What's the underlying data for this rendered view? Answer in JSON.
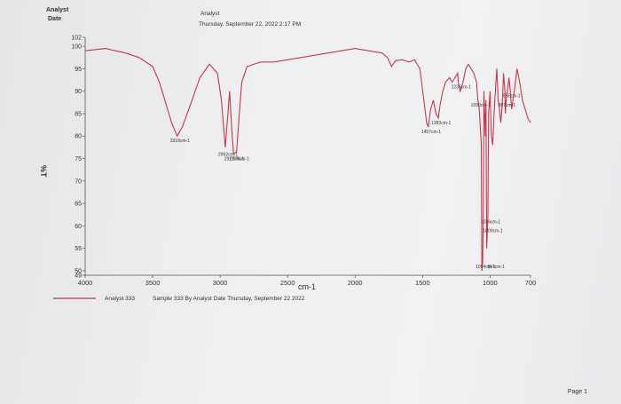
{
  "header": {
    "left_line1": "Analyst",
    "left_line2": "Date",
    "center_line1": "Analyst",
    "center_line2": "Thursday, September 22, 2022 2:17 PM"
  },
  "footer": {
    "legend_name": "Analyst 333",
    "legend_desc": "Sample 333 By Analyst Date Thursday, September 22 2022",
    "page": "Page 1"
  },
  "colors": {
    "line": "#c8384a",
    "axis": "#555555"
  },
  "chart_data": {
    "type": "line",
    "xlabel": "cm-1",
    "ylabel": "%T",
    "xlim": [
      4000,
      700
    ],
    "ylim": [
      49,
      102
    ],
    "x_ticks": [
      4000,
      3500,
      3000,
      2500,
      2000,
      1500,
      1000,
      700
    ],
    "y_ticks": [
      102,
      100,
      95,
      90,
      85,
      80,
      75,
      70,
      65,
      60,
      55,
      50,
      49
    ],
    "series": [
      {
        "name": "Analyst 333",
        "x": [
          4000,
          3850,
          3700,
          3600,
          3500,
          3450,
          3400,
          3360,
          3318,
          3280,
          3220,
          3150,
          3080,
          3020,
          2990,
          2962,
          2945,
          2930,
          2915,
          2900,
          2878,
          2860,
          2840,
          2800,
          2700,
          2600,
          2500,
          2400,
          2300,
          2200,
          2100,
          2000,
          1900,
          1800,
          1760,
          1730,
          1700,
          1650,
          1600,
          1560,
          1520,
          1490,
          1470,
          1457,
          1440,
          1420,
          1400,
          1383,
          1370,
          1350,
          1330,
          1300,
          1280,
          1260,
          1240,
          1235,
          1220,
          1200,
          1180,
          1160,
          1140,
          1120,
          1100,
          1090,
          1080,
          1065,
          1060,
          1054,
          1050,
          1045,
          1040,
          1035,
          1030,
          1025,
          1016,
          1010,
          1000,
          990,
          980,
          970,
          960,
          950,
          945,
          940,
          930,
          920,
          910,
          900,
          890,
          887,
          880,
          860,
          850,
          840,
          820,
          800,
          780,
          760,
          740,
          720,
          700
        ],
        "y": [
          99,
          99.5,
          98.5,
          97.5,
          95.5,
          92,
          87,
          83,
          80,
          82,
          87,
          93,
          96,
          94,
          88,
          77.5,
          84,
          90,
          82,
          76,
          76.5,
          84,
          92,
          95.5,
          96.5,
          96.5,
          97,
          97.5,
          98,
          98.5,
          99,
          99.5,
          99,
          98.5,
          97.5,
          95.5,
          96.8,
          97,
          96.5,
          97,
          95,
          88,
          83,
          82,
          86,
          88,
          85,
          84,
          87,
          90,
          92,
          93,
          92,
          93,
          94,
          92,
          90,
          92,
          95,
          96,
          95,
          94,
          92,
          88,
          86,
          78,
          50,
          52,
          62,
          90,
          85,
          80,
          88,
          55,
          62,
          85,
          90,
          80,
          78,
          85,
          90,
          95,
          92,
          88,
          86,
          83,
          87,
          94,
          90,
          85,
          88,
          93,
          90,
          86,
          90,
          95,
          92,
          88,
          86,
          84,
          83
        ]
      }
    ],
    "peak_labels": [
      {
        "text": "3318cm-1",
        "x": 3318,
        "y": 80
      },
      {
        "text": "2962cm-1",
        "x": 2962,
        "y": 77
      },
      {
        "text": "2917cm-1",
        "x": 2917,
        "y": 76
      },
      {
        "text": "2878cm-1",
        "x": 2878,
        "y": 76
      },
      {
        "text": "1457cm-1",
        "x": 1457,
        "y": 82
      },
      {
        "text": "1383cm-1",
        "x": 1383,
        "y": 84
      },
      {
        "text": "1235cm-1",
        "x": 1235,
        "y": 92
      },
      {
        "text": "1090cm-1",
        "x": 1090,
        "y": 88
      },
      {
        "text": "1054cm-1",
        "x": 1054,
        "y": 52
      },
      {
        "text": "1016cm-1",
        "x": 1016,
        "y": 62
      },
      {
        "text": "1000cm-1",
        "x": 1000,
        "y": 60
      },
      {
        "text": "967cm-1",
        "x": 967,
        "y": 52
      },
      {
        "text": "887cm-1",
        "x": 887,
        "y": 88
      },
      {
        "text": "850cm-1",
        "x": 850,
        "y": 90
      }
    ]
  }
}
